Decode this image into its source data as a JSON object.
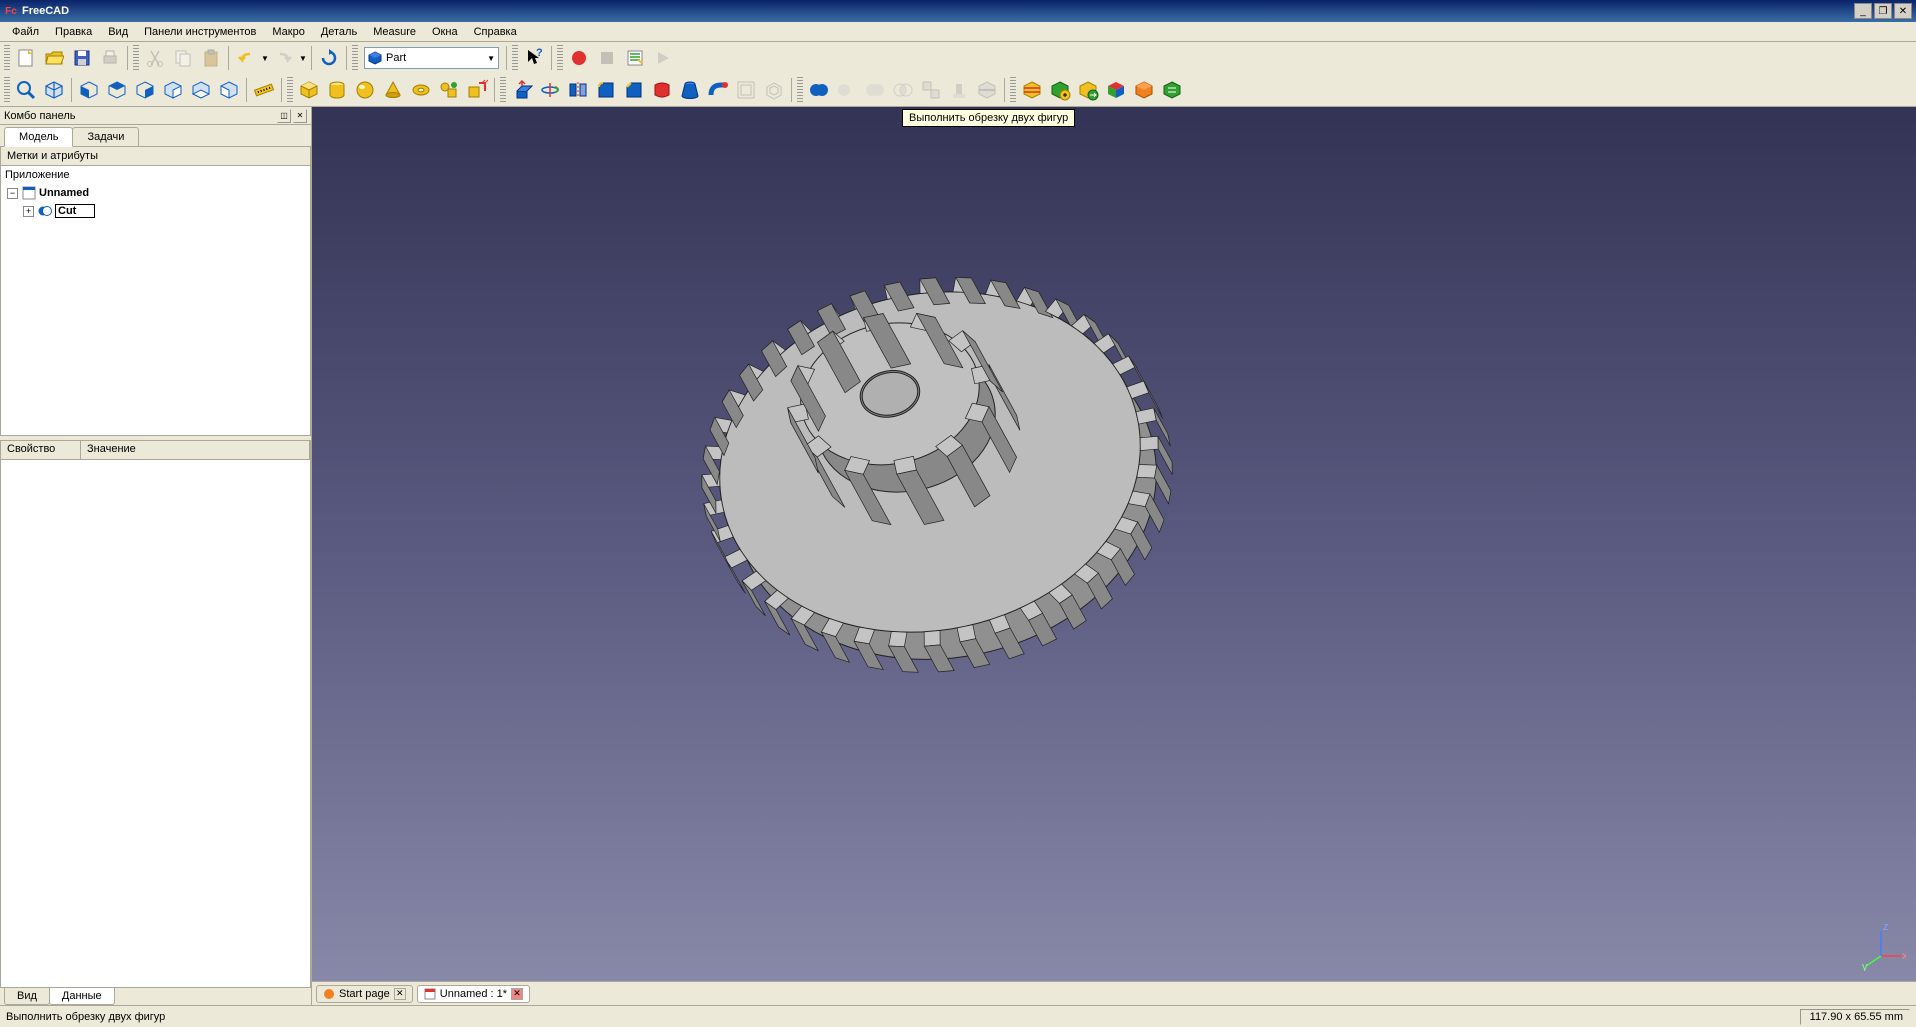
{
  "titlebar": {
    "app_name": "FreeCAD"
  },
  "menu": {
    "file": "Файл",
    "edit": "Правка",
    "view": "Вид",
    "toolbars": "Панели инструментов",
    "macro": "Макро",
    "part": "Деталь",
    "measure": "Measure",
    "windows": "Окна",
    "help": "Справка"
  },
  "workbench": {
    "label": "Part"
  },
  "combo": {
    "title": "Комбо панель",
    "tab_model": "Модель",
    "tab_tasks": "Задачи",
    "labels_attrs": "Метки и атрибуты",
    "tree": {
      "root": "Приложение",
      "doc": "Unnamed",
      "item": "Cut"
    },
    "prop_col1": "Свойство",
    "prop_col2": "Значение",
    "prop_tab_view": "Вид",
    "prop_tab_data": "Данные"
  },
  "tooltip": {
    "text": "Выполнить обрезку двух фигур"
  },
  "doc_tabs": {
    "start": "Start page",
    "unnamed": "Unnamed : 1*"
  },
  "statusbar": {
    "text": "Выполнить обрезку двух фигур",
    "coords": "117.90 x 65.55 mm"
  },
  "colors": {
    "gear_fill": "#b8b8b8",
    "gear_stroke": "#222222",
    "toolbar_colors": {
      "blue": "#1060c0",
      "red": "#e03030",
      "yellow": "#f0c020",
      "green": "#30a030",
      "orange": "#f08020",
      "grey": "#909090",
      "magenta": "#c040c0",
      "cyan": "#40b0d0"
    }
  }
}
